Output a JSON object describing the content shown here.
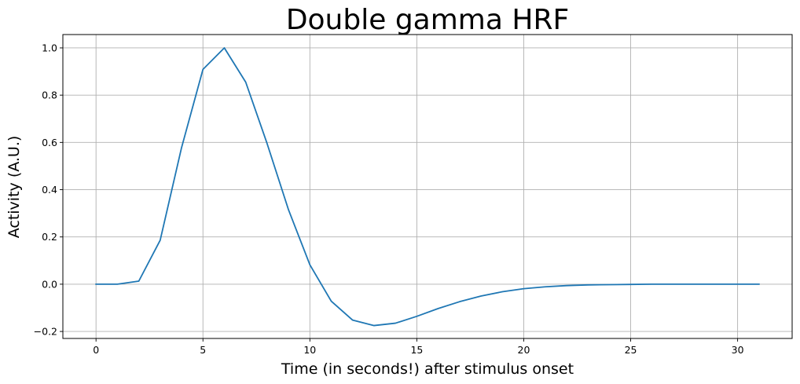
{
  "chart_data": {
    "type": "line",
    "title": "Double gamma HRF",
    "xlabel": "Time (in seconds!) after stimulus onset",
    "ylabel": "Activity (A.U.)",
    "xlim": [
      -1.55,
      32.55
    ],
    "ylim": [
      -0.2296,
      1.0564
    ],
    "xticks": [
      0,
      5,
      10,
      15,
      20,
      25,
      30
    ],
    "xtick_labels": [
      "0",
      "5",
      "10",
      "15",
      "20",
      "25",
      "30"
    ],
    "yticks": [
      -0.2,
      0.0,
      0.2,
      0.4,
      0.6,
      0.8,
      1.0
    ],
    "ytick_labels": [
      "−0.2",
      "0.0",
      "0.2",
      "0.4",
      "0.6",
      "0.8",
      "1.0"
    ],
    "grid": true,
    "series": [
      {
        "color": "#1f77b4",
        "x": [
          0,
          1,
          2,
          3,
          4,
          5,
          6,
          7,
          8,
          9,
          10,
          11,
          12,
          13,
          14,
          15,
          16,
          17,
          18,
          19,
          20,
          21,
          22,
          23,
          24,
          25,
          26,
          27,
          28,
          29,
          30,
          31
        ],
        "y": [
          0.0,
          0.0,
          0.013,
          0.186,
          0.578,
          0.909,
          1.0,
          0.855,
          0.595,
          0.315,
          0.082,
          -0.072,
          -0.152,
          -0.175,
          -0.165,
          -0.136,
          -0.103,
          -0.074,
          -0.05,
          -0.032,
          -0.019,
          -0.011,
          -0.006,
          -0.003,
          -0.002,
          -0.001,
          0.0,
          0.0,
          0.0,
          0.0,
          0.0,
          0.0
        ]
      }
    ]
  }
}
